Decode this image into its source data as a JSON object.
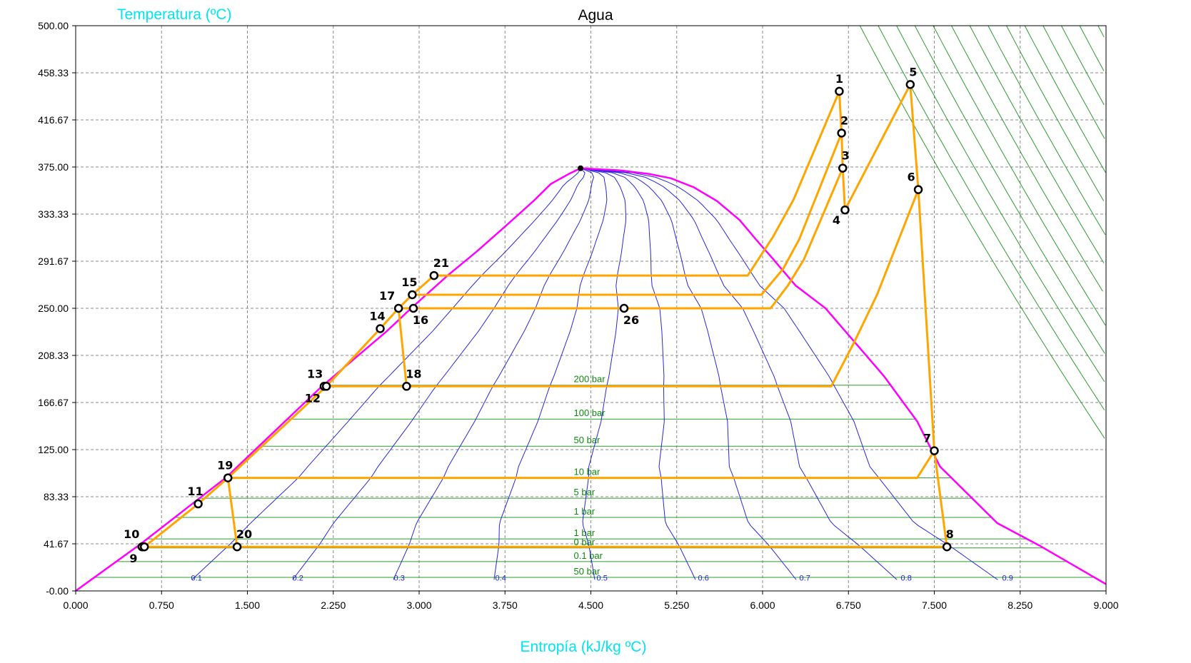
{
  "chart_data": {
    "type": "scatter",
    "title": "Agua",
    "xlabel": "Entropía (kJ/kg ºC)",
    "ylabel": "Temperatura (ºC)",
    "xlim": [
      0,
      9
    ],
    "ylim": [
      0,
      500
    ],
    "x_ticks": [
      "0.000",
      "0.750",
      "1.500",
      "2.250",
      "3.000",
      "3.750",
      "4.500",
      "5.250",
      "6.000",
      "6.750",
      "7.500",
      "8.250",
      "9.000"
    ],
    "y_ticks": [
      "-0.00",
      "41.67",
      "83.33",
      "125.00",
      "166.67",
      "208.33",
      "250.00",
      "291.67",
      "333.33",
      "375.00",
      "416.67",
      "458.33",
      "500.00"
    ],
    "grid": true,
    "saturation_dome": {
      "color": "#ff00ff",
      "critical_point": {
        "s": 4.41,
        "T": 373.9
      },
      "liquid_line": [
        [
          0.0,
          0.0
        ],
        [
          0.57,
          41.7
        ],
        [
          1.31,
          100
        ],
        [
          2.14,
          180
        ],
        [
          2.72,
          230
        ],
        [
          2.93,
          250
        ],
        [
          3.26,
          280
        ],
        [
          3.5,
          300
        ],
        [
          3.78,
          325
        ],
        [
          4.0,
          345
        ],
        [
          4.15,
          360
        ],
        [
          4.31,
          369
        ],
        [
          4.41,
          373.9
        ]
      ],
      "vapor_line": [
        [
          4.41,
          373.9
        ],
        [
          4.58,
          373
        ],
        [
          4.76,
          372
        ],
        [
          5.0,
          369
        ],
        [
          5.2,
          365
        ],
        [
          5.4,
          357
        ],
        [
          5.6,
          345
        ],
        [
          5.8,
          328
        ],
        [
          5.95,
          310
        ],
        [
          6.08,
          295
        ],
        [
          6.18,
          283
        ],
        [
          6.29,
          270
        ],
        [
          6.55,
          250
        ],
        [
          7.06,
          190
        ],
        [
          7.35,
          150
        ],
        [
          7.55,
          110
        ],
        [
          8.05,
          60
        ],
        [
          8.42,
          40
        ],
        [
          9.0,
          6
        ]
      ]
    },
    "isobars": [
      {
        "label": "200 bar",
        "T": 182,
        "label_s": 4.5
      },
      {
        "label": "100 bar",
        "T": 152,
        "label_s": 4.5
      },
      {
        "label": "50 bar",
        "T": 128,
        "label_s": 4.5
      },
      {
        "label": "10 bar",
        "T": 100,
        "label_s": 4.5
      },
      {
        "label": "5 bar",
        "T": 82,
        "label_s": 4.5
      },
      {
        "label": "1 bar",
        "T": 65,
        "label_s": 4.5
      },
      {
        "label": "1 bar",
        "T": 46,
        "label_s": 4.5
      },
      {
        "label": "0 bar",
        "T": 38,
        "label_s": 4.5
      },
      {
        "label": "0.1 bar",
        "T": 26,
        "label_s": 4.5
      },
      {
        "label": "50 bar",
        "T": 12,
        "label_s": 4.5
      }
    ],
    "quality_lines": [
      {
        "label": "0.1",
        "x": 0.1
      },
      {
        "label": "0.2",
        "x": 0.2
      },
      {
        "label": "0.3",
        "x": 0.3
      },
      {
        "label": "0.4",
        "x": 0.4
      },
      {
        "label": "0.5",
        "x": 0.5
      },
      {
        "label": "0.6",
        "x": 0.6
      },
      {
        "label": "0.7",
        "x": 0.7
      },
      {
        "label": "0.8",
        "x": 0.8
      },
      {
        "label": "0.9",
        "x": 0.9
      }
    ],
    "isochores": {
      "count": 14,
      "color": "#2e9a2e"
    },
    "states": [
      {
        "id": "1",
        "s": 6.67,
        "T": 442
      },
      {
        "id": "2",
        "s": 6.69,
        "T": 405
      },
      {
        "id": "3",
        "s": 6.7,
        "T": 374
      },
      {
        "id": "4",
        "s": 6.72,
        "T": 337
      },
      {
        "id": "5",
        "s": 7.29,
        "T": 448
      },
      {
        "id": "6",
        "s": 7.36,
        "T": 355
      },
      {
        "id": "7",
        "s": 7.5,
        "T": 124
      },
      {
        "id": "8",
        "s": 7.61,
        "T": 39
      },
      {
        "id": "9",
        "s": 0.58,
        "T": 39
      },
      {
        "id": "10",
        "s": 0.6,
        "T": 39
      },
      {
        "id": "11",
        "s": 1.07,
        "T": 77
      },
      {
        "id": "12",
        "s": 2.17,
        "T": 181
      },
      {
        "id": "13",
        "s": 2.19,
        "T": 181
      },
      {
        "id": "14",
        "s": 2.66,
        "T": 232
      },
      {
        "id": "15",
        "s": 2.94,
        "T": 262
      },
      {
        "id": "16",
        "s": 2.95,
        "T": 250
      },
      {
        "id": "17",
        "s": 2.82,
        "T": 250
      },
      {
        "id": "18",
        "s": 2.89,
        "T": 181
      },
      {
        "id": "19",
        "s": 1.33,
        "T": 100
      },
      {
        "id": "20",
        "s": 1.41,
        "T": 39
      },
      {
        "id": "21",
        "s": 3.13,
        "T": 279
      },
      {
        "id": "26",
        "s": 4.79,
        "T": 250
      }
    ],
    "cycle_paths": [
      [
        [
          0.6,
          39
        ],
        [
          1.07,
          77
        ],
        [
          1.33,
          100
        ],
        [
          2.19,
          181
        ],
        [
          2.66,
          232
        ],
        [
          2.82,
          250
        ],
        [
          2.94,
          262
        ],
        [
          3.13,
          279
        ]
      ],
      [
        [
          3.13,
          279
        ],
        [
          5.87,
          279
        ],
        [
          6.09,
          313
        ],
        [
          6.27,
          346
        ],
        [
          6.67,
          442
        ],
        [
          6.69,
          405
        ],
        [
          6.7,
          374
        ],
        [
          6.72,
          337
        ],
        [
          7.29,
          448
        ],
        [
          7.36,
          355
        ],
        [
          7.5,
          124
        ],
        [
          7.61,
          39
        ],
        [
          0.6,
          39
        ]
      ],
      [
        [
          2.94,
          262
        ],
        [
          5.99,
          262
        ],
        [
          6.18,
          285
        ],
        [
          6.32,
          311
        ],
        [
          6.69,
          405
        ]
      ],
      [
        [
          2.82,
          250
        ],
        [
          6.07,
          250
        ],
        [
          6.22,
          270
        ],
        [
          6.36,
          293
        ],
        [
          6.7,
          374
        ]
      ],
      [
        [
          2.82,
          250
        ],
        [
          2.89,
          181
        ],
        [
          2.19,
          181
        ],
        [
          6.6,
          181
        ],
        [
          6.8,
          220
        ],
        [
          7.0,
          262
        ],
        [
          7.36,
          355
        ]
      ],
      [
        [
          1.33,
          100
        ],
        [
          1.41,
          39
        ]
      ],
      [
        [
          1.33,
          100
        ],
        [
          7.35,
          100
        ],
        [
          7.5,
          124
        ]
      ]
    ],
    "cycle_color": "#ffa500"
  }
}
